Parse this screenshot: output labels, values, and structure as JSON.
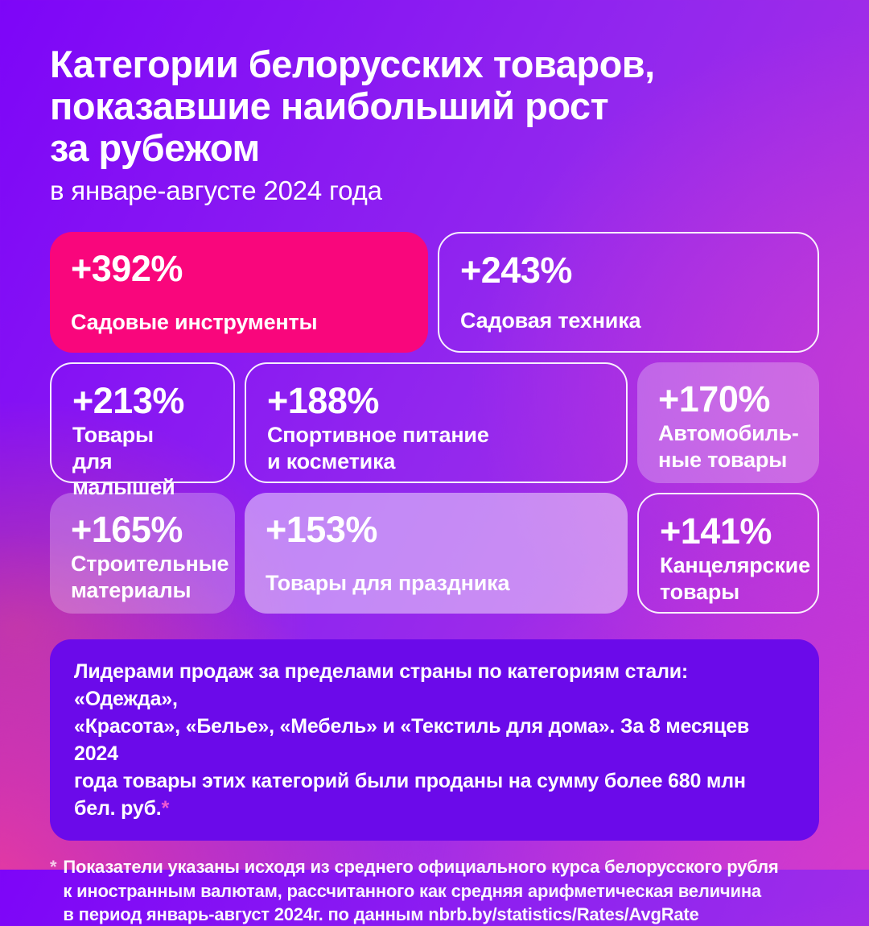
{
  "colors": {
    "bg_top_left": "#7f06f8",
    "bg_top_right": "#9a2bec",
    "bg_right_magenta": "#c73cd4",
    "bg_bottom_left_pink": "#ee4397",
    "bg_bottom_right_magenta": "#d83bc8",
    "card_solid_pink": "#f9067c",
    "info_box_purple": "#6b0aea",
    "text_white": "#ffffff",
    "asterisk_pink": "#f05ad2"
  },
  "header": {
    "title": "Категории белорусских товаров,\nпоказавшие наибольший рост\nза рубежом",
    "subtitle": "в январе-августе 2024 года"
  },
  "cards": [
    {
      "value": "+392%",
      "label": "Садовые инструменты"
    },
    {
      "value": "+243%",
      "label": "Садовая техника"
    },
    {
      "value": "+213%",
      "label": "Товары\nдля малышей"
    },
    {
      "value": "+188%",
      "label": "Спортивное питание\nи косметика"
    },
    {
      "value": "+170%",
      "label": "Автомобиль-\nные товары"
    },
    {
      "value": "+165%",
      "label": "Строительные\nматериалы"
    },
    {
      "value": "+153%",
      "label": "Товары для праздника"
    },
    {
      "value": "+141%",
      "label": "Канцелярские\nтовары"
    }
  ],
  "info": {
    "text": "Лидерами продаж за пределами страны по категориям стали: «Одежда»,\n«Красота», «Белье», «Мебель» и «Текстиль для дома». За 8 месяцев 2024\nгода товары этих категорий были проданы на сумму более 680 млн\nбел. руб.",
    "asterisk": "*"
  },
  "footnote": {
    "asterisk": "*",
    "text": "Показатели указаны исходя из среднего официального курса белорусского рубля\nк иностранным валютам, рассчитанного как средняя арифметическая величина\nв период январь-август 2024г. по данным nbrb.by/statistics/Rates/AvgRate"
  },
  "chart_data": {
    "type": "table",
    "title": "Категории белорусских товаров, показавшие наибольший рост за рубежом",
    "subtitle": "в январе-августе 2024 года",
    "categories": [
      "Садовые инструменты",
      "Садовая техника",
      "Товары для малышей",
      "Спортивное питание и косметика",
      "Автомобильные товары",
      "Строительные материалы",
      "Товары для праздника",
      "Канцелярские товары"
    ],
    "values": [
      392,
      243,
      213,
      188,
      170,
      165,
      153,
      141
    ],
    "unit": "% рост",
    "note": "более 680 млн бел. руб. за 8 месяцев 2024 года"
  }
}
